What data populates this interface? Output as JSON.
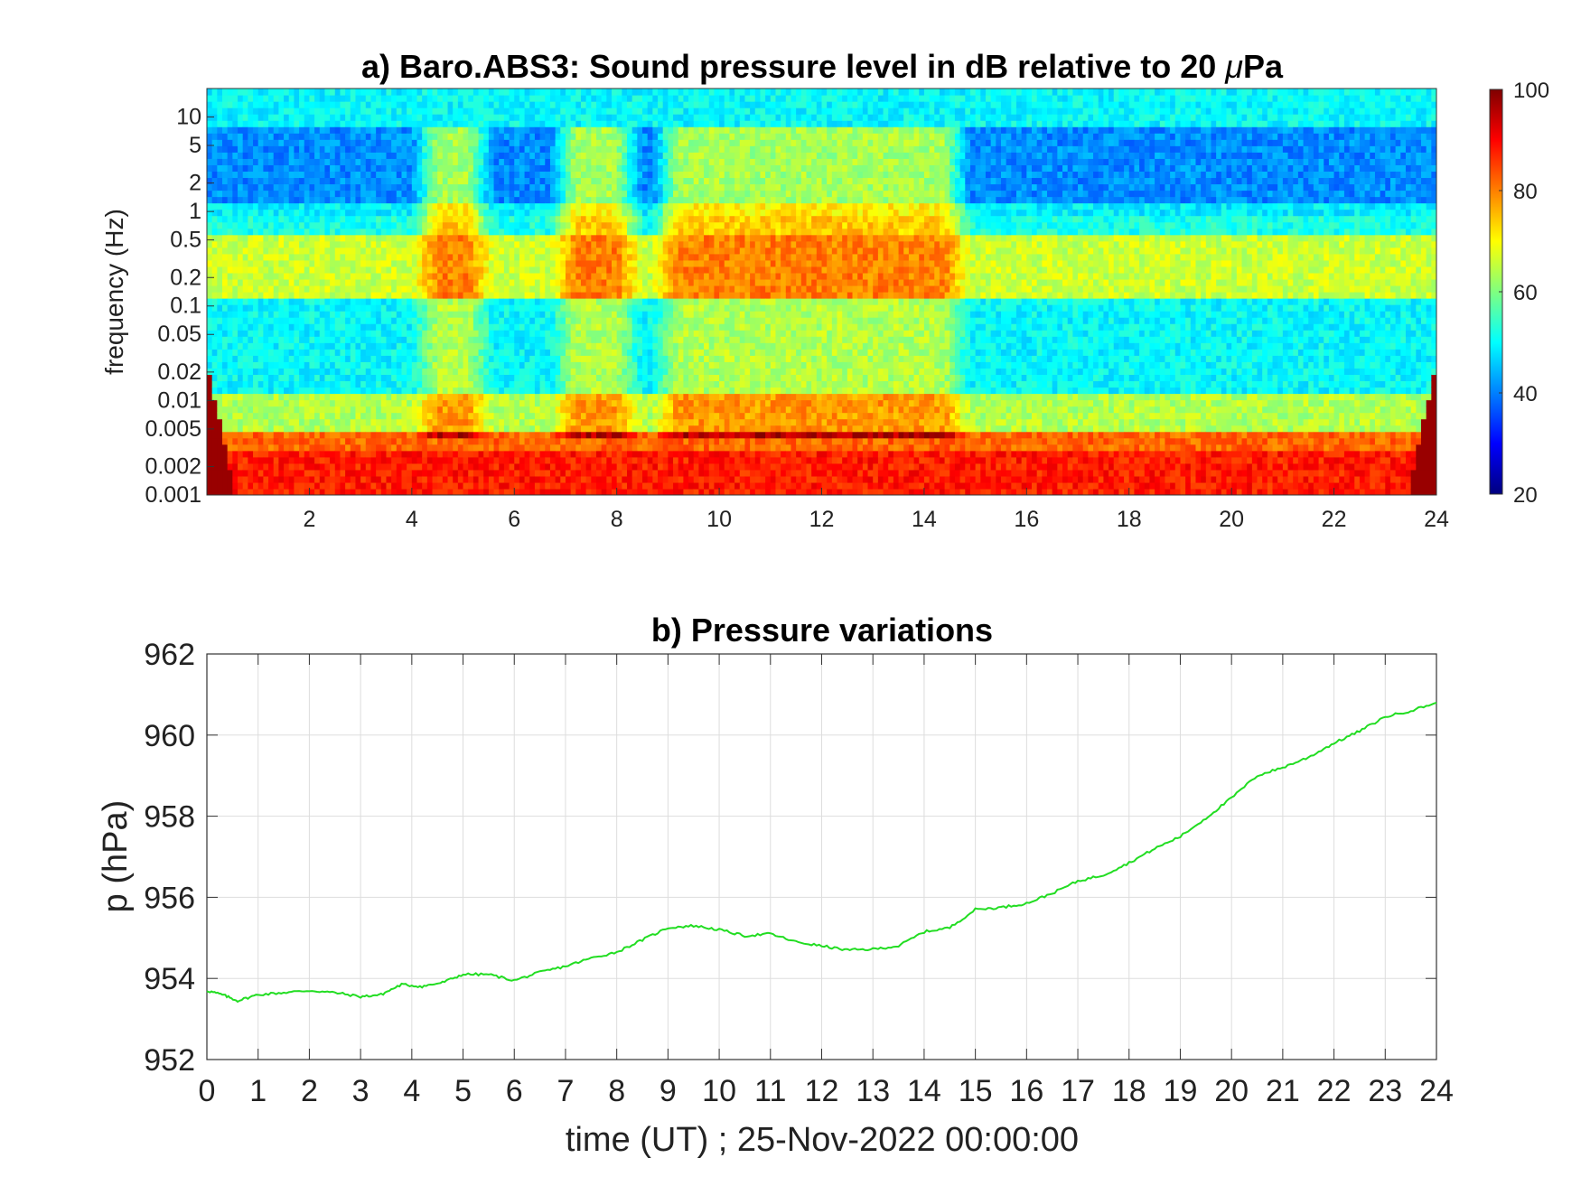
{
  "chart_data": [
    {
      "type": "heatmap",
      "title_prefix": "a) Baro.ABS3: Sound pressure level in dB relative to 20 ",
      "title_mu": "μ",
      "title_suffix": "Pa",
      "ylabel": "frequency (Hz)",
      "xlim": [
        0,
        24
      ],
      "ylim": [
        0.001,
        20
      ],
      "yscale": "log",
      "xticks": [
        "2",
        "4",
        "6",
        "8",
        "10",
        "12",
        "14",
        "16",
        "18",
        "20",
        "22",
        "24"
      ],
      "yticks": [
        "10",
        "5",
        "2",
        "1",
        "0.5",
        "0.2",
        "0.1",
        "0.05",
        "0.02",
        "0.01",
        "0.005",
        "0.002",
        "0.001"
      ],
      "colorbar": {
        "min": 20,
        "max": 100,
        "ticks": [
          "100",
          "80",
          "60",
          "40",
          "20"
        ],
        "colormap": "jet"
      },
      "frequency_bands": [
        {
          "f_range": [
            10,
            20
          ],
          "level_db": 50
        },
        {
          "f_range": [
            1,
            5
          ],
          "level_db": 41
        },
        {
          "f_range": [
            0.15,
            0.5
          ],
          "level_db": 66
        },
        {
          "f_range": [
            0.01,
            0.1
          ],
          "level_db": 50
        },
        {
          "f_range": [
            0.001,
            0.005
          ],
          "level_db": 88
        }
      ],
      "active_periods_h": [
        [
          4.5,
          5.1
        ],
        [
          7.2,
          8.0
        ],
        [
          9.2,
          14.4
        ]
      ],
      "grid": false
    },
    {
      "type": "line",
      "title": "b) Pressure variations",
      "xlabel": "time (UT) ; 25-Nov-2022 00:00:00",
      "ylabel": "p (hPa)",
      "xlim": [
        0,
        24
      ],
      "ylim": [
        952,
        962
      ],
      "xticks": [
        "0",
        "1",
        "2",
        "3",
        "4",
        "5",
        "6",
        "7",
        "8",
        "9",
        "10",
        "11",
        "12",
        "13",
        "14",
        "15",
        "16",
        "17",
        "18",
        "19",
        "20",
        "21",
        "22",
        "23",
        "24"
      ],
      "yticks": [
        "962",
        "960",
        "958",
        "956",
        "954",
        "952"
      ],
      "grid": true,
      "color": "#22dd22",
      "x": [
        0,
        0.3,
        0.6,
        1,
        1.5,
        2,
        2.5,
        3,
        3.4,
        3.8,
        4.2,
        4.6,
        5,
        5.5,
        6,
        6.5,
        7,
        7.5,
        8,
        8.5,
        9,
        9.5,
        10,
        10.5,
        11,
        11.5,
        12,
        12.5,
        13,
        13.5,
        14,
        14.5,
        15,
        15.5,
        16,
        16.5,
        17,
        17.5,
        18,
        18.5,
        19,
        19.5,
        20,
        20.5,
        21,
        21.5,
        22,
        22.5,
        23,
        23.5,
        24
      ],
      "y": [
        953.7,
        953.6,
        953.45,
        953.6,
        953.65,
        953.7,
        953.65,
        953.55,
        953.6,
        953.85,
        953.8,
        953.9,
        954.1,
        954.1,
        953.95,
        954.15,
        954.3,
        954.5,
        954.65,
        954.95,
        955.25,
        955.3,
        955.2,
        955.05,
        955.1,
        954.9,
        954.8,
        954.7,
        954.72,
        954.8,
        955.15,
        955.25,
        955.7,
        955.75,
        955.85,
        956.1,
        956.4,
        956.55,
        956.85,
        957.2,
        957.5,
        957.95,
        958.45,
        959.0,
        959.2,
        959.45,
        959.8,
        960.1,
        960.45,
        960.6,
        960.8
      ]
    }
  ]
}
